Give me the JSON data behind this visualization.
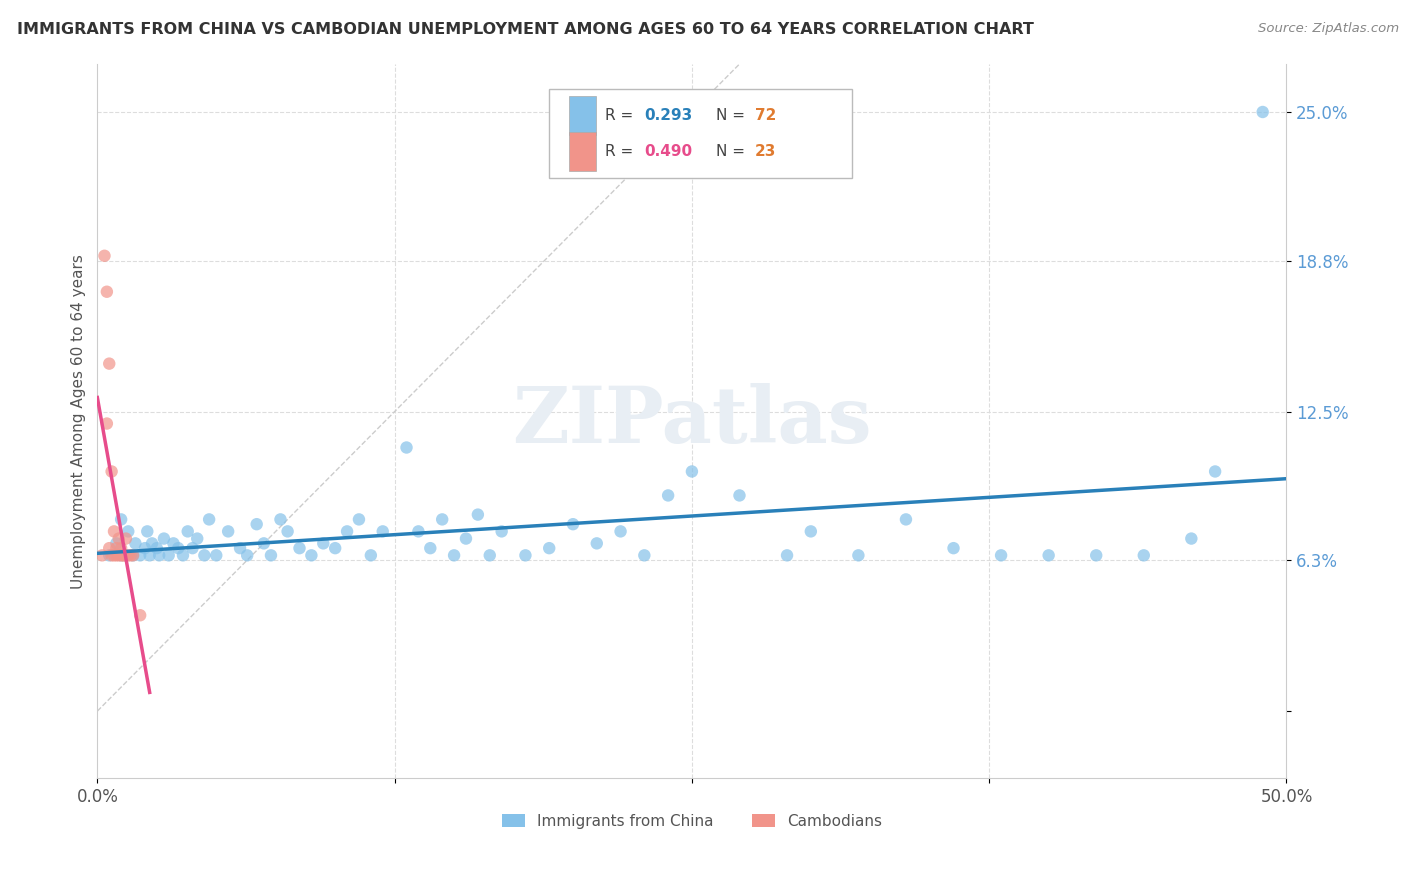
{
  "title": "IMMIGRANTS FROM CHINA VS CAMBODIAN UNEMPLOYMENT AMONG AGES 60 TO 64 YEARS CORRELATION CHART",
  "source": "Source: ZipAtlas.com",
  "ylabel": "Unemployment Among Ages 60 to 64 years",
  "y_ticks": [
    0.0,
    0.063,
    0.125,
    0.188,
    0.25
  ],
  "y_tick_labels": [
    "",
    "6.3%",
    "12.5%",
    "18.8%",
    "25.0%"
  ],
  "x_lim": [
    0.0,
    0.5
  ],
  "y_lim": [
    -0.028,
    0.27
  ],
  "color_china": "#85c1e9",
  "color_cambodian": "#f1948a",
  "color_line_china": "#2980b9",
  "color_line_cambodian": "#e74c8b",
  "color_ytick": "#5b9bd5",
  "watermark_color": "#e8eef4",
  "china_scatter_x": [
    0.005,
    0.008,
    0.01,
    0.01,
    0.012,
    0.013,
    0.015,
    0.016,
    0.018,
    0.02,
    0.021,
    0.022,
    0.023,
    0.025,
    0.026,
    0.028,
    0.03,
    0.032,
    0.034,
    0.036,
    0.038,
    0.04,
    0.042,
    0.045,
    0.047,
    0.05,
    0.055,
    0.06,
    0.063,
    0.067,
    0.07,
    0.073,
    0.077,
    0.08,
    0.085,
    0.09,
    0.095,
    0.1,
    0.105,
    0.11,
    0.115,
    0.12,
    0.13,
    0.135,
    0.14,
    0.145,
    0.15,
    0.155,
    0.16,
    0.165,
    0.17,
    0.18,
    0.19,
    0.2,
    0.21,
    0.22,
    0.23,
    0.24,
    0.25,
    0.27,
    0.29,
    0.3,
    0.32,
    0.34,
    0.36,
    0.38,
    0.4,
    0.42,
    0.44,
    0.46,
    0.47,
    0.49
  ],
  "china_scatter_y": [
    0.065,
    0.07,
    0.065,
    0.08,
    0.065,
    0.075,
    0.065,
    0.07,
    0.065,
    0.068,
    0.075,
    0.065,
    0.07,
    0.068,
    0.065,
    0.072,
    0.065,
    0.07,
    0.068,
    0.065,
    0.075,
    0.068,
    0.072,
    0.065,
    0.08,
    0.065,
    0.075,
    0.068,
    0.065,
    0.078,
    0.07,
    0.065,
    0.08,
    0.075,
    0.068,
    0.065,
    0.07,
    0.068,
    0.075,
    0.08,
    0.065,
    0.075,
    0.11,
    0.075,
    0.068,
    0.08,
    0.065,
    0.072,
    0.082,
    0.065,
    0.075,
    0.065,
    0.068,
    0.078,
    0.07,
    0.075,
    0.065,
    0.09,
    0.1,
    0.09,
    0.065,
    0.075,
    0.065,
    0.08,
    0.068,
    0.065,
    0.065,
    0.065,
    0.065,
    0.072,
    0.1,
    0.25
  ],
  "cambodian_scatter_x": [
    0.002,
    0.003,
    0.004,
    0.004,
    0.005,
    0.005,
    0.006,
    0.006,
    0.007,
    0.007,
    0.008,
    0.008,
    0.009,
    0.009,
    0.01,
    0.01,
    0.011,
    0.011,
    0.012,
    0.013,
    0.014,
    0.015,
    0.018
  ],
  "cambodian_scatter_y": [
    0.065,
    0.19,
    0.175,
    0.12,
    0.145,
    0.068,
    0.1,
    0.065,
    0.075,
    0.065,
    0.065,
    0.068,
    0.065,
    0.072,
    0.065,
    0.068,
    0.065,
    0.065,
    0.072,
    0.065,
    0.065,
    0.065,
    0.04
  ],
  "cam_line_x0": 0.0,
  "cam_line_x1": 0.022,
  "diag_line_x0": 0.0,
  "diag_line_x1": 0.27,
  "diag_line_y0": 0.0,
  "diag_line_y1": 0.27
}
